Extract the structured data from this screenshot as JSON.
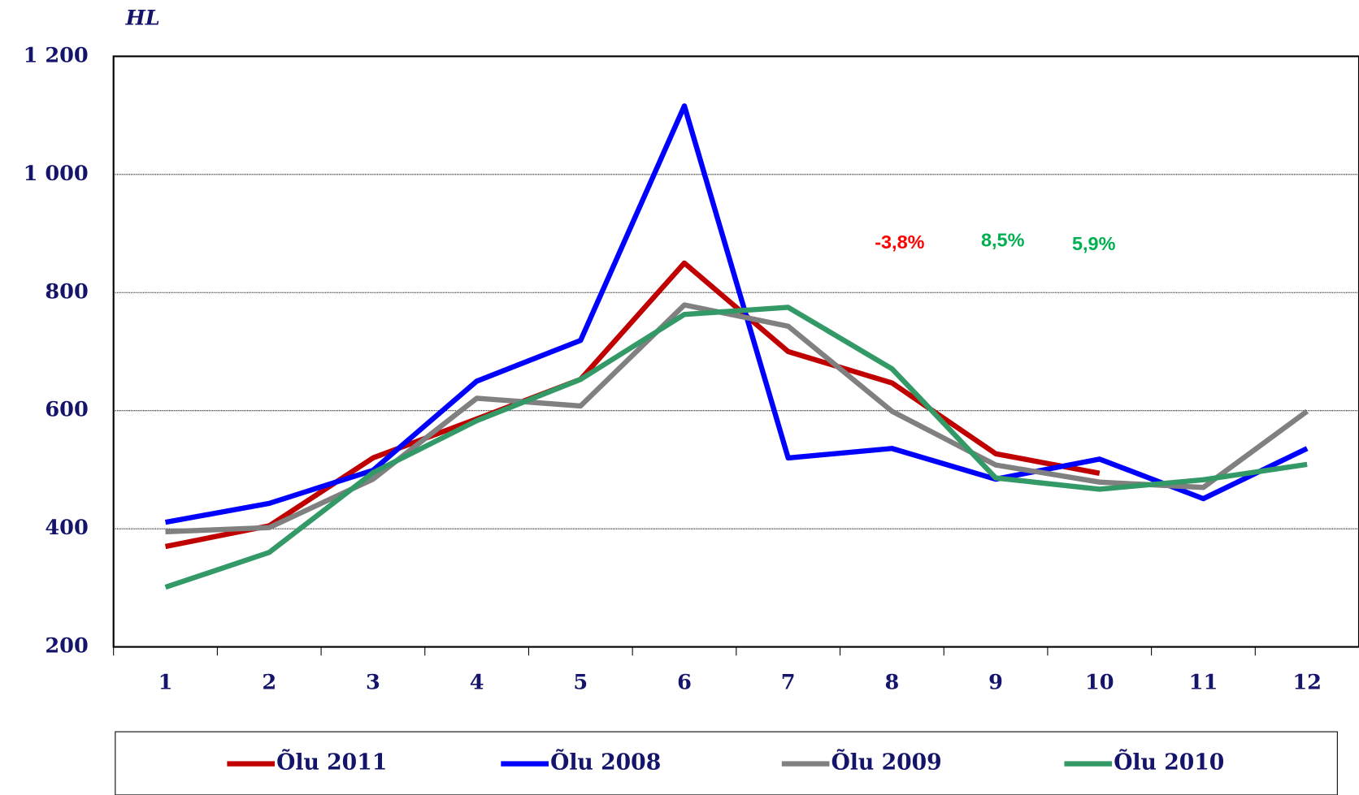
{
  "chart_data": {
    "type": "line",
    "y_label": "HL",
    "categories": [
      "1",
      "2",
      "3",
      "4",
      "5",
      "6",
      "7",
      "8",
      "9",
      "10",
      "11",
      "12"
    ],
    "series": [
      {
        "name": "Õlu 2011",
        "color": "#c00000",
        "values": [
          370,
          405,
          520,
          586,
          653,
          850,
          700,
          647,
          527,
          494,
          null,
          null
        ]
      },
      {
        "name": "Õlu 2008",
        "color": "#0000ff",
        "values": [
          411,
          443,
          499,
          650,
          719,
          1116,
          520,
          536,
          484,
          518,
          451,
          536
        ]
      },
      {
        "name": "Õlu 2009",
        "color": "#808080",
        "values": [
          395,
          402,
          484,
          621,
          608,
          779,
          743,
          599,
          508,
          479,
          470,
          599
        ]
      },
      {
        "name": "Õlu 2010",
        "color": "#339966",
        "values": [
          301,
          360,
          495,
          583,
          653,
          763,
          775,
          671,
          486,
          467,
          483,
          509
        ]
      }
    ],
    "ylim": [
      200,
      1200
    ],
    "yticks": [
      200,
      400,
      600,
      800,
      {
        "value": 1000,
        "label": "1 000"
      },
      {
        "value": 1200,
        "label": "1 200"
      }
    ],
    "grid": true,
    "legend": "bottom",
    "annotations": [
      {
        "text": "-3,8%",
        "color": "#ff0000"
      },
      {
        "text": "8,5%",
        "color": "#00b050"
      },
      {
        "text": "5,9%",
        "color": "#00b050"
      }
    ]
  }
}
